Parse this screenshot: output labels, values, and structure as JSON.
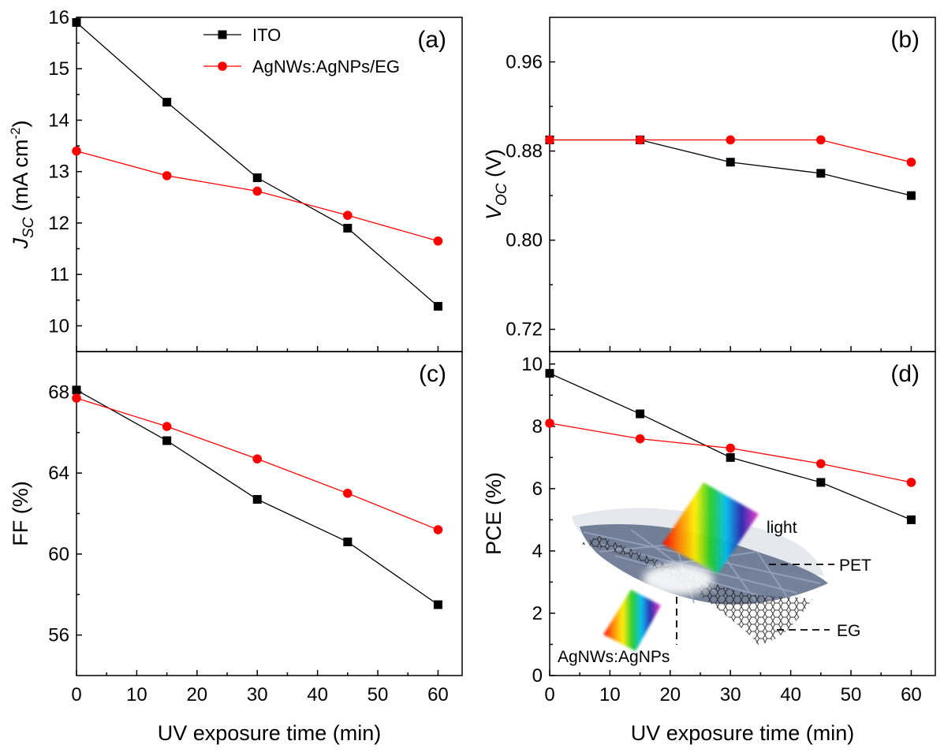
{
  "chart_data": [
    {
      "panel": "(a)",
      "type": "line",
      "x": [
        0,
        15,
        30,
        45,
        60
      ],
      "ylabel": {
        "main": "J",
        "sub": "SC",
        "units": " (mA cm",
        "sup": "-2",
        "close": ")"
      },
      "ylim": [
        9.5,
        16
      ],
      "xlim": [
        0,
        64
      ],
      "yticks": [
        "10",
        "11",
        "12",
        "13",
        "14",
        "15",
        "16"
      ],
      "legend": "top-left",
      "series": [
        {
          "name": "ITO",
          "color": "#000000",
          "marker": "square",
          "values": [
            15.9,
            14.35,
            12.88,
            11.9,
            10.38
          ]
        },
        {
          "name": "AgNWs:AgNPs/EG",
          "color": "#ff0000",
          "marker": "circle",
          "values": [
            13.4,
            12.92,
            12.62,
            12.15,
            11.65
          ]
        }
      ]
    },
    {
      "panel": "(b)",
      "type": "line",
      "x": [
        0,
        15,
        30,
        45,
        60
      ],
      "ylabel": {
        "main": "V",
        "sub": "OC",
        "units": " (V)"
      },
      "ylim": [
        0.7,
        1.0
      ],
      "xlim": [
        0,
        64
      ],
      "yticks": [
        "0.72",
        "0.80",
        "0.88",
        "0.96"
      ],
      "series": [
        {
          "name": "ITO",
          "color": "#000000",
          "marker": "square",
          "values": [
            0.89,
            0.89,
            0.87,
            0.86,
            0.84
          ]
        },
        {
          "name": "AgNWs:AgNPs/EG",
          "color": "#ff0000",
          "marker": "circle",
          "values": [
            0.89,
            0.89,
            0.89,
            0.89,
            0.87
          ]
        }
      ]
    },
    {
      "panel": "(c)",
      "type": "line",
      "x": [
        0,
        15,
        30,
        45,
        60
      ],
      "xlabel": "UV exposure time (min)",
      "ylabel": {
        "main": "FF  (%)"
      },
      "ylim": [
        54,
        70
      ],
      "xlim": [
        0,
        64
      ],
      "xticks": [
        "0",
        "10",
        "20",
        "30",
        "40",
        "50",
        "60"
      ],
      "yticks": [
        "56",
        "60",
        "64",
        "68"
      ],
      "series": [
        {
          "name": "ITO",
          "color": "#000000",
          "marker": "square",
          "values": [
            68.1,
            65.6,
            62.7,
            60.6,
            57.5
          ]
        },
        {
          "name": "AgNWs:AgNPs/EG",
          "color": "#ff0000",
          "marker": "circle",
          "values": [
            67.7,
            66.3,
            64.7,
            63.0,
            61.2
          ]
        }
      ]
    },
    {
      "panel": "(d)",
      "type": "line",
      "x": [
        0,
        15,
        30,
        45,
        60
      ],
      "xlabel": "UV exposure time (min)",
      "ylabel": {
        "main": "PCE  (%)"
      },
      "ylim": [
        0,
        10.4
      ],
      "xlim": [
        0,
        64
      ],
      "xticks": [
        "0",
        "10",
        "20",
        "30",
        "40",
        "50",
        "60"
      ],
      "yticks": [
        "0",
        "2",
        "4",
        "6",
        "8",
        "10"
      ],
      "series": [
        {
          "name": "ITO",
          "color": "#000000",
          "marker": "square",
          "values": [
            9.7,
            8.4,
            7.0,
            6.2,
            5.0
          ]
        },
        {
          "name": "AgNWs:AgNPs/EG",
          "color": "#ff0000",
          "marker": "circle",
          "values": [
            8.1,
            7.6,
            7.3,
            6.8,
            6.2
          ]
        }
      ],
      "inset": {
        "labels": {
          "light": "light",
          "pet": "PET",
          "eg": "EG",
          "agnws": "AgNWs:AgNPs"
        }
      }
    }
  ]
}
